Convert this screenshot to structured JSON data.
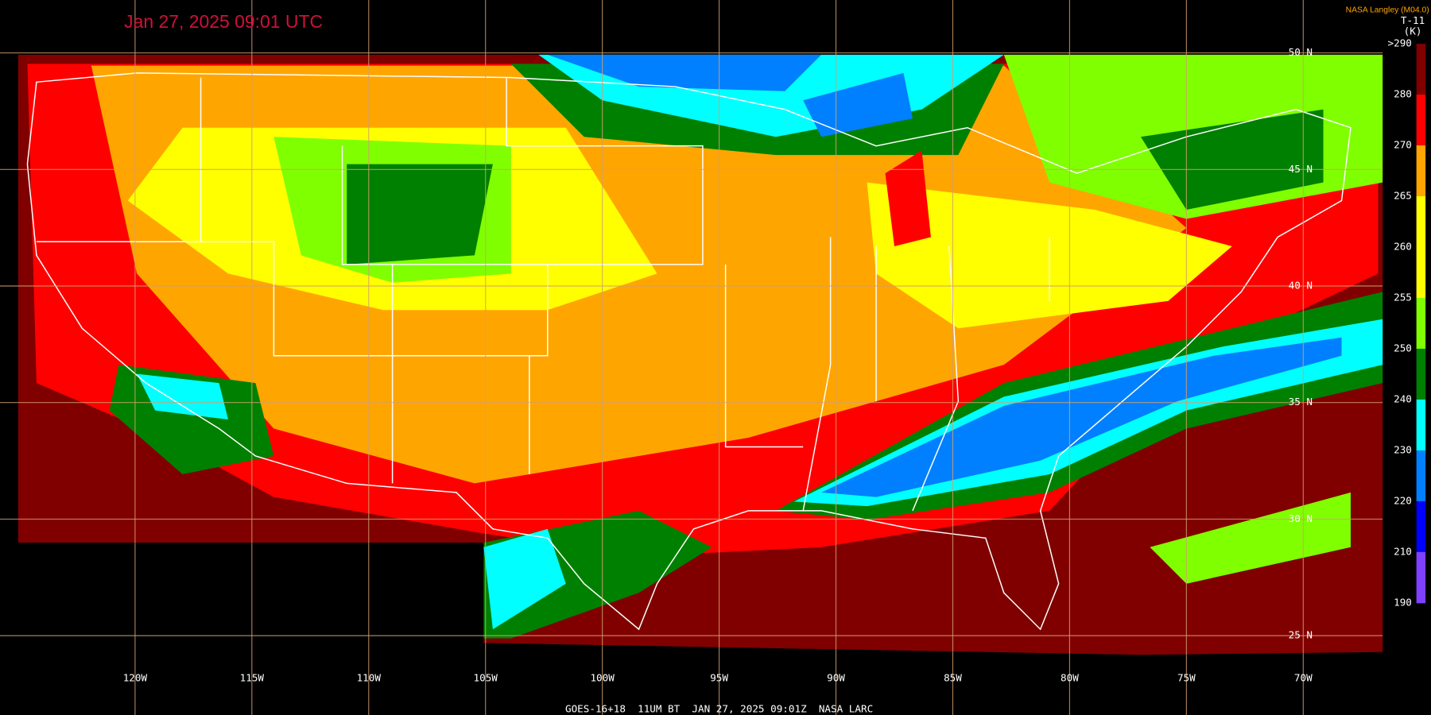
{
  "title": "Jan 27, 2025 09:01 UTC",
  "credit": "NASA Langley (M04.0)",
  "colorbar": {
    "title": "T-11",
    "unit": "(K)",
    "labels": [
      ">290",
      "280",
      "270",
      "265",
      "260",
      "255",
      "250",
      "240",
      "230",
      "220",
      "210",
      "190"
    ]
  },
  "longitude_labels": [
    "120W",
    "115W",
    "110W",
    "105W",
    "100W",
    "95W",
    "90W",
    "85W",
    "80W",
    "75W",
    "70W"
  ],
  "latitude_labels": [
    "50 N",
    "45 N",
    "40 N",
    "35 N",
    "30 N",
    "25 N"
  ],
  "footer": "GOES-16+18  11UM BT  JAN 27, 2025 09:01Z  NASA LARC"
}
